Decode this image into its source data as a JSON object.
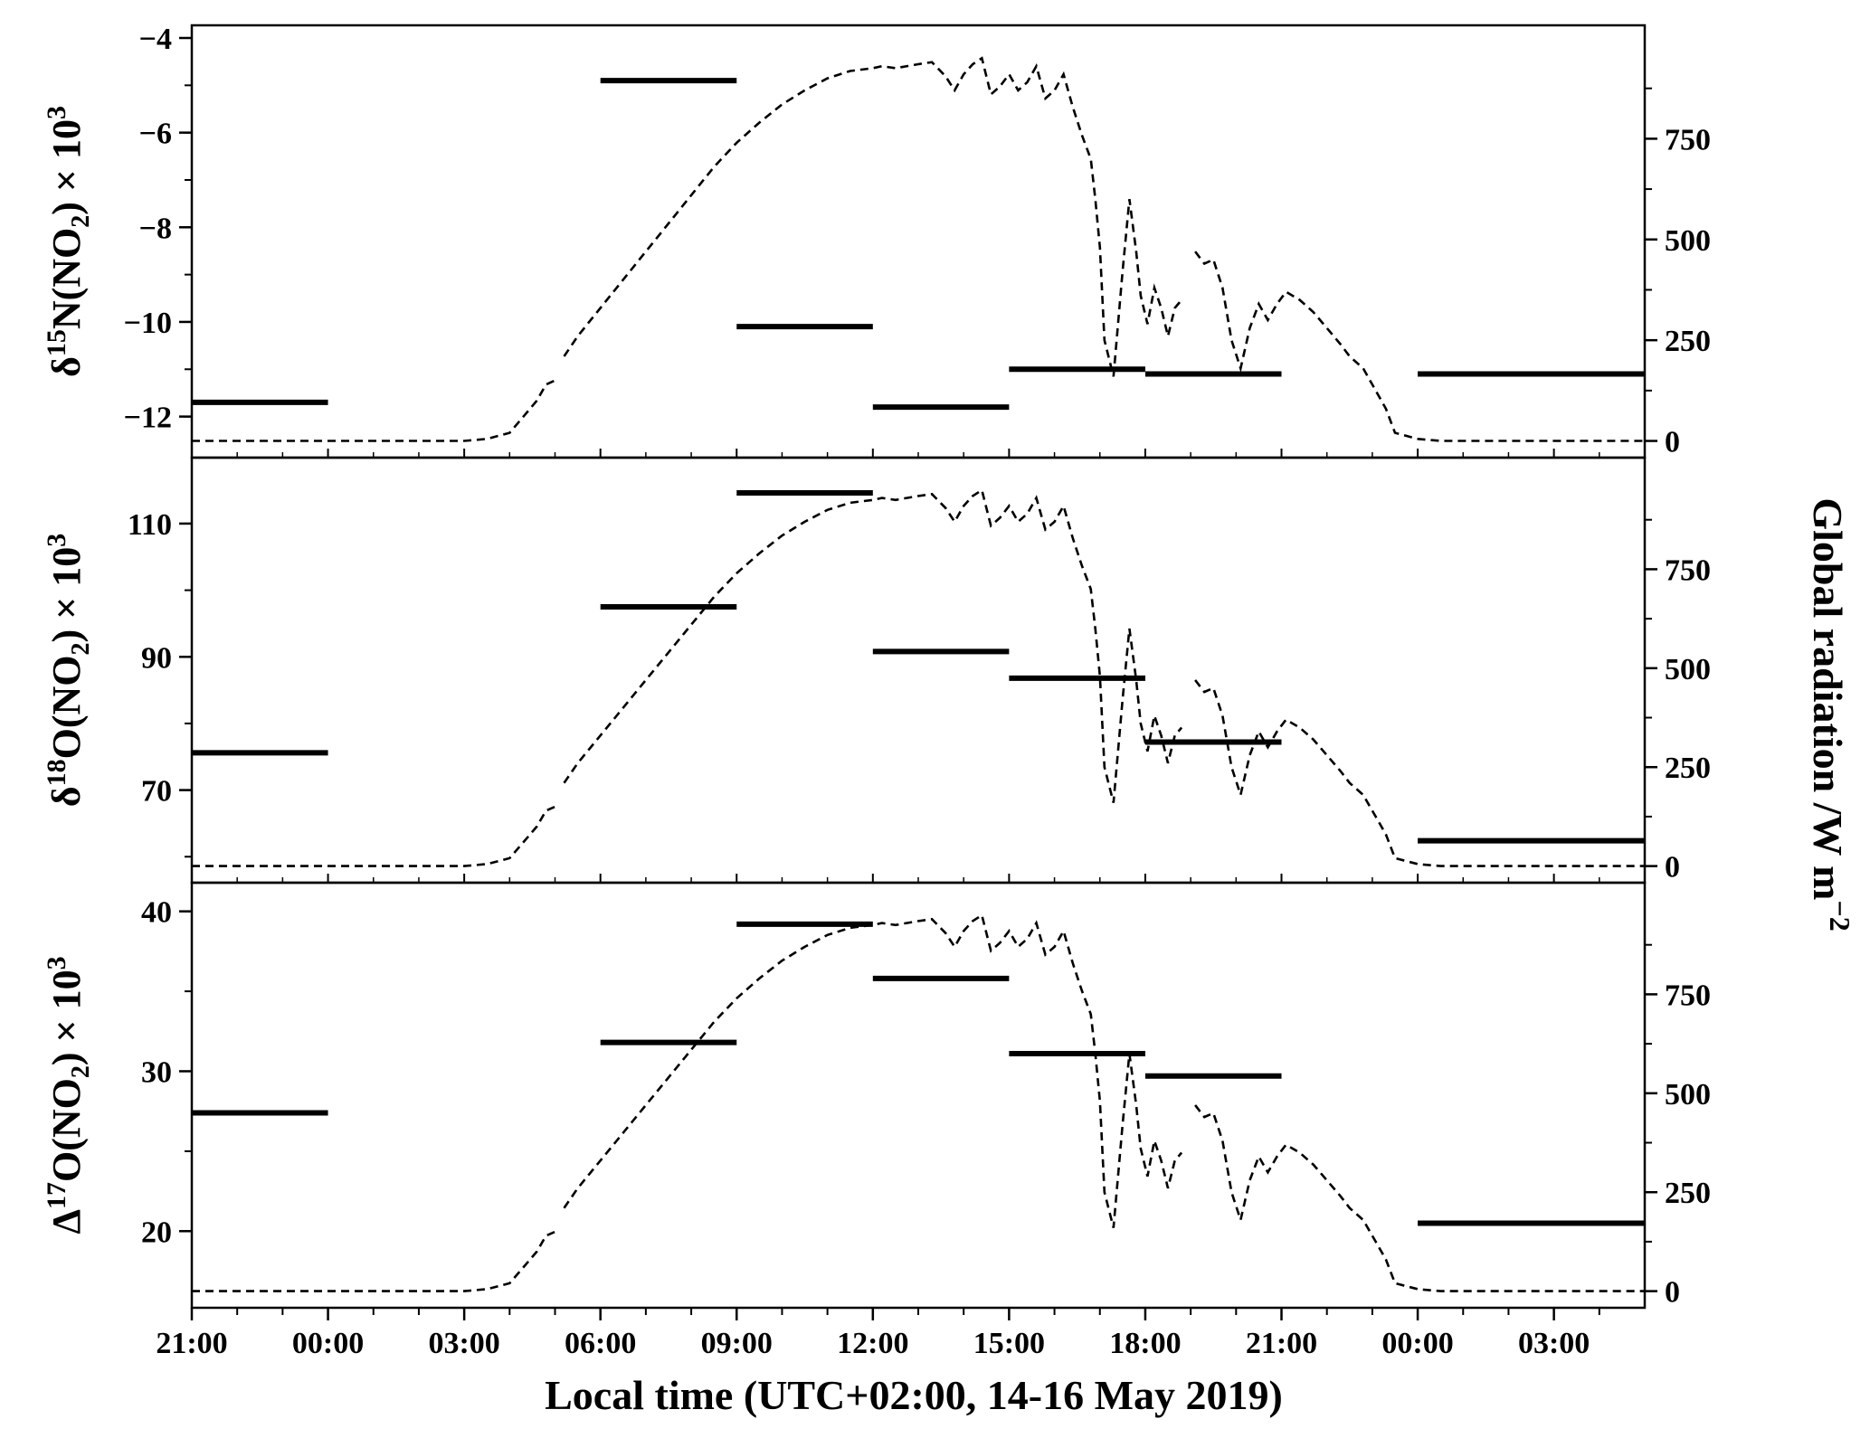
{
  "chart_data": {
    "type": "line",
    "shared": {
      "xlabel": "Local time (UTC+02:00, 14-16 May 2019)",
      "x_tick_labels": [
        "21:00",
        "00:00",
        "03:00",
        "06:00",
        "09:00",
        "12:00",
        "15:00",
        "18:00",
        "21:00",
        "00:00",
        "03:00"
      ],
      "x_tick_hours": [
        0,
        3,
        6,
        9,
        12,
        15,
        18,
        21,
        24,
        27,
        30
      ],
      "xlim_hours": [
        0,
        32
      ],
      "right_ylabel": "Global radiation /W m",
      "right_ylabel_exponent": "−2",
      "right_ylim": [
        -10,
        1000
      ],
      "right_ticks": [
        0,
        250,
        500,
        750
      ],
      "radiation_series": {
        "name": "",
        "style": "dashed",
        "segments": [
          [
            [
              0,
              0
            ],
            [
              1,
              0
            ],
            [
              2,
              0
            ],
            [
              3,
              0
            ],
            [
              4,
              0
            ],
            [
              5,
              0
            ],
            [
              6,
              0
            ],
            [
              6.5,
              5
            ],
            [
              7,
              20
            ],
            [
              7.3,
              60
            ],
            [
              7.6,
              100
            ],
            [
              7.8,
              140
            ],
            [
              8,
              150
            ]
          ],
          [
            [
              8.2,
              210
            ],
            [
              8.5,
              260
            ],
            [
              9,
              330
            ],
            [
              9.5,
              400
            ],
            [
              10,
              470
            ],
            [
              10.5,
              540
            ],
            [
              11,
              610
            ],
            [
              11.5,
              680
            ],
            [
              12,
              740
            ],
            [
              12.5,
              790
            ],
            [
              13,
              835
            ],
            [
              13.5,
              870
            ],
            [
              14,
              900
            ],
            [
              14.5,
              918
            ],
            [
              15,
              925
            ],
            [
              15.2,
              930
            ],
            [
              15.5,
              925
            ],
            [
              16,
              935
            ],
            [
              16.3,
              940
            ],
            [
              16.6,
              905
            ],
            [
              16.8,
              870
            ],
            [
              17,
              910
            ],
            [
              17.2,
              935
            ],
            [
              17.4,
              950
            ],
            [
              17.6,
              860
            ],
            [
              17.8,
              880
            ],
            [
              18,
              910
            ],
            [
              18.2,
              870
            ],
            [
              18.4,
              890
            ],
            [
              18.6,
              930
            ],
            [
              18.8,
              850
            ],
            [
              19,
              870
            ],
            [
              19.2,
              910
            ],
            [
              19.4,
              830
            ],
            [
              19.6,
              760
            ],
            [
              19.8,
              700
            ],
            [
              19.9,
              600
            ],
            [
              20,
              480
            ],
            [
              20.1,
              250
            ],
            [
              20.3,
              160
            ],
            [
              20.5,
              420
            ],
            [
              20.65,
              600
            ],
            [
              20.8,
              470
            ],
            [
              20.9,
              360
            ],
            [
              21.05,
              290
            ],
            [
              21.2,
              380
            ],
            [
              21.35,
              330
            ],
            [
              21.5,
              260
            ],
            [
              21.65,
              330
            ],
            [
              21.8,
              350
            ]
          ],
          [
            [
              22.1,
              470
            ],
            [
              22.3,
              440
            ],
            [
              22.5,
              450
            ],
            [
              22.7,
              380
            ],
            [
              22.9,
              250
            ],
            [
              23.1,
              180
            ],
            [
              23.3,
              280
            ],
            [
              23.5,
              340
            ],
            [
              23.7,
              300
            ],
            [
              23.9,
              340
            ],
            [
              24.1,
              370
            ],
            [
              24.4,
              350
            ],
            [
              24.7,
              320
            ],
            [
              25,
              280
            ],
            [
              25.3,
              240
            ],
            [
              25.5,
              210
            ],
            [
              25.8,
              180
            ],
            [
              26.1,
              120
            ],
            [
              26.3,
              80
            ],
            [
              26.5,
              20
            ],
            [
              27,
              5
            ],
            [
              27.5,
              0
            ],
            [
              28,
              0
            ],
            [
              29,
              0
            ],
            [
              30,
              0
            ],
            [
              31,
              0
            ],
            [
              32,
              0
            ]
          ]
        ]
      }
    },
    "panels": [
      {
        "ylabel": "δ15N(NO2) × 103",
        "ylabel_parts": [
          "δ",
          "15",
          "N(NO",
          "2",
          ") × 10",
          "3"
        ],
        "ylim": [
          -12.6,
          -4
        ],
        "yticks": [
          -4,
          -6,
          -8,
          -10,
          -12
        ],
        "ytick_labels": [
          "−4",
          "−6",
          "−8",
          "−10",
          "−12"
        ],
        "series": {
          "name": "",
          "style": "step",
          "segments": [
            {
              "x_start": 0,
              "x_end": 3,
              "y": -11.7
            },
            {
              "x_start": 9,
              "x_end": 12,
              "y": -4.9
            },
            {
              "x_start": 12,
              "x_end": 15,
              "y": -10.1
            },
            {
              "x_start": 15,
              "x_end": 18,
              "y": -11.8
            },
            {
              "x_start": 18,
              "x_end": 21,
              "y": -11.0
            },
            {
              "x_start": 21,
              "x_end": 24,
              "y": -11.1
            },
            {
              "x_start": 27,
              "x_end": 32,
              "y": -11.1
            }
          ]
        }
      },
      {
        "ylabel": "δ18O(NO2) × 103",
        "ylabel_parts": [
          "δ",
          "18",
          "O(NO",
          "2",
          ") × 10",
          "3"
        ],
        "ylim": [
          58,
          118
        ],
        "yticks": [
          110,
          90,
          70
        ],
        "ytick_labels": [
          "110",
          "90",
          "70"
        ],
        "series": {
          "name": "",
          "style": "step",
          "segments": [
            {
              "x_start": 0,
              "x_end": 3,
              "y": 75.6
            },
            {
              "x_start": 9,
              "x_end": 12,
              "y": 97.5
            },
            {
              "x_start": 12,
              "x_end": 15,
              "y": 114.6
            },
            {
              "x_start": 15,
              "x_end": 18,
              "y": 90.8
            },
            {
              "x_start": 18,
              "x_end": 21,
              "y": 86.8
            },
            {
              "x_start": 21,
              "x_end": 24,
              "y": 77.2
            },
            {
              "x_start": 27,
              "x_end": 32,
              "y": 62.4
            }
          ]
        }
      },
      {
        "ylabel": "Δ17O(NO2) × 103",
        "ylabel_parts": [
          "Δ",
          "17",
          "O(NO",
          "2",
          ") × 10",
          "3"
        ],
        "ylim": [
          16,
          41
        ],
        "yticks": [
          40,
          30,
          20
        ],
        "ytick_labels": [
          "40",
          "30",
          "20"
        ],
        "series": {
          "name": "",
          "style": "step",
          "segments": [
            {
              "x_start": 0,
              "x_end": 3,
              "y": 27.4
            },
            {
              "x_start": 9,
              "x_end": 12,
              "y": 31.8
            },
            {
              "x_start": 12,
              "x_end": 15,
              "y": 39.2
            },
            {
              "x_start": 15,
              "x_end": 18,
              "y": 35.8
            },
            {
              "x_start": 18,
              "x_end": 21,
              "y": 31.1
            },
            {
              "x_start": 21,
              "x_end": 24,
              "y": 29.7
            },
            {
              "x_start": 27,
              "x_end": 32,
              "y": 20.5
            }
          ]
        }
      }
    ]
  }
}
